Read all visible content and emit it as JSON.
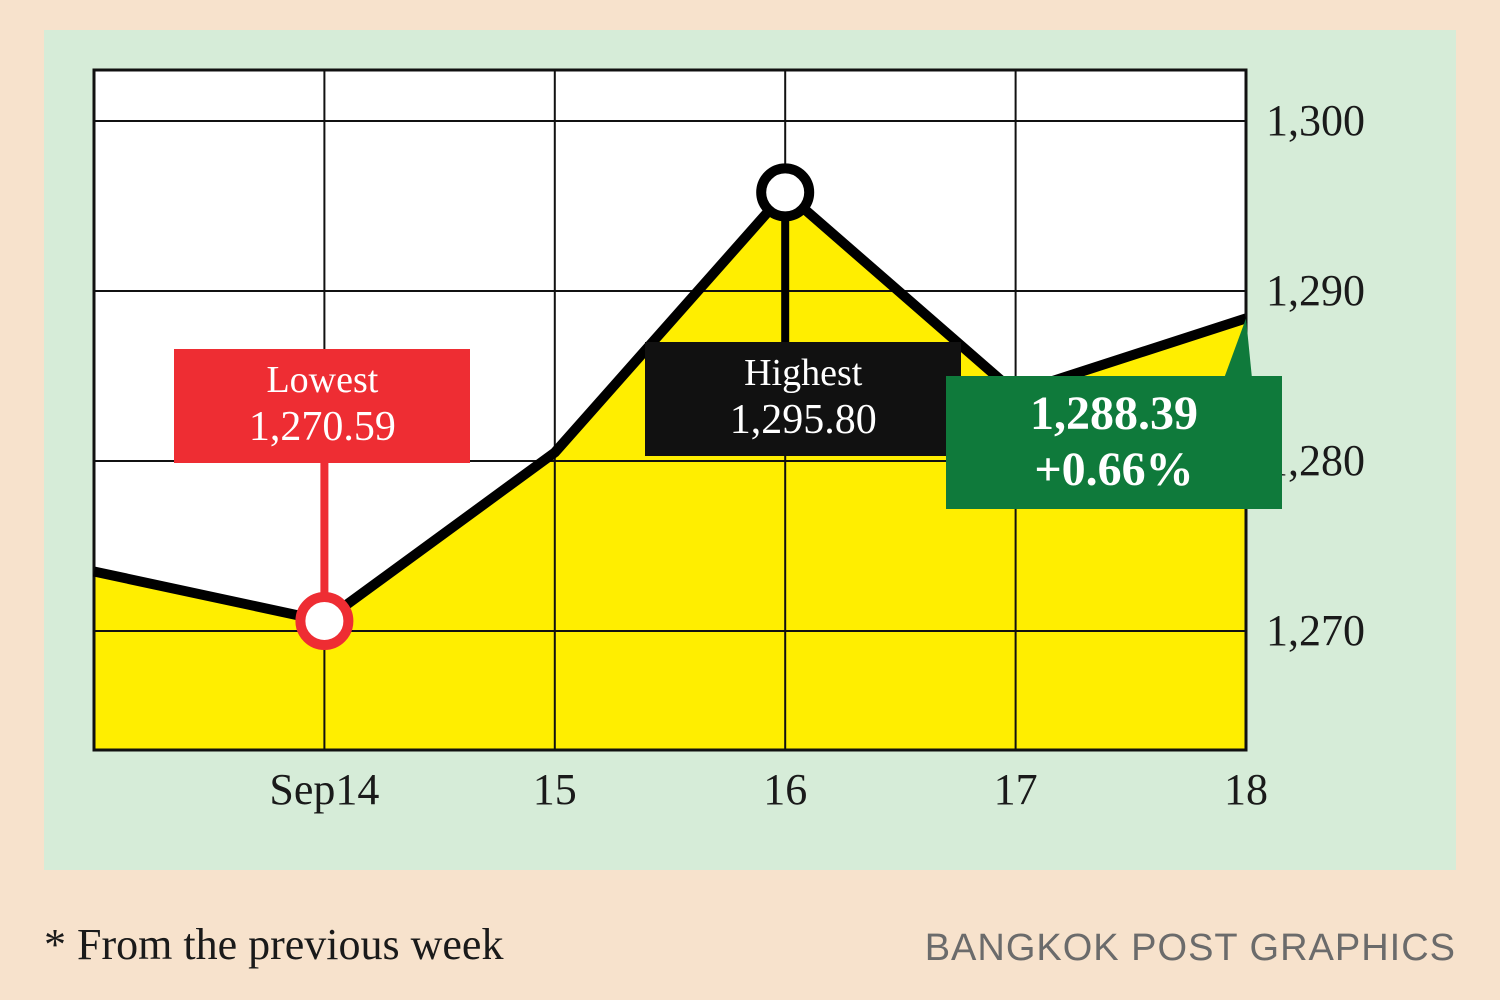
{
  "chart": {
    "type": "area-line",
    "background_outer": "#f7e2cc",
    "background_panel": "#d6ecd8",
    "plot_background": "#ffffff",
    "grid_color": "#111111",
    "grid_stroke_width": 2,
    "line_color": "#000000",
    "line_stroke_width": 10,
    "area_fill": "#ffee00",
    "marker_ring_color_low": "#ee2d33",
    "marker_ring_color_high": "#000000",
    "marker_ring_width": 10,
    "marker_radius": 24,
    "x_categories": [
      "Sep14",
      "15",
      "16",
      "17",
      "18"
    ],
    "y_ticks": [
      1270,
      1280,
      1290,
      1300
    ],
    "y_min": 1263,
    "y_max": 1303,
    "series": [
      1273.5,
      1270.59,
      1280.5,
      1295.8,
      1284.0,
      1288.39
    ],
    "lowest": {
      "label": "Lowest",
      "value": "1,270.59",
      "index": 1
    },
    "highest": {
      "label": "Highest",
      "value": "1,295.80",
      "index": 3
    },
    "last": {
      "value": "1,288.39",
      "change": "+0.66%",
      "index": 5
    },
    "axis_fontsize": 44,
    "callout_fontsize": 38
  },
  "footnote": "* From the previous week",
  "credit": "BANGKOK POST GRAPHICS"
}
